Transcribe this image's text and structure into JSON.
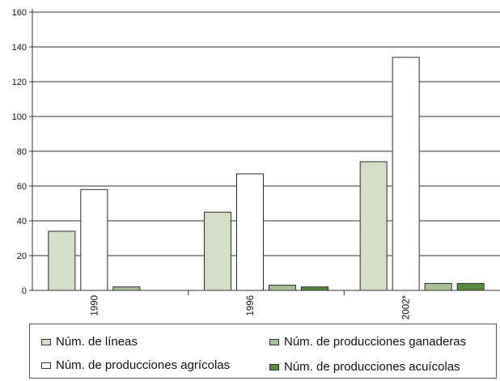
{
  "chart_data": {
    "type": "bar",
    "categories": [
      "1990",
      "1996",
      "2002*"
    ],
    "series": [
      {
        "name": "Núm. de líneas",
        "color": "#d3dfc9",
        "values": [
          34,
          45,
          74
        ]
      },
      {
        "name": "Núm. de producciones agrícolas",
        "color": "#ffffff",
        "values": [
          58,
          67,
          134
        ]
      },
      {
        "name": "Núm. de producciones ganaderas",
        "color": "#a9bf96",
        "values": [
          2,
          3,
          4
        ]
      },
      {
        "name": "Núm. de producciones acuícolas",
        "color": "#5a8a3e",
        "values": [
          0,
          2,
          4
        ]
      }
    ],
    "ylim": [
      0,
      160
    ],
    "yticks": [
      0,
      20,
      40,
      60,
      80,
      100,
      120,
      140,
      160
    ],
    "grid": true,
    "legend_position": "bottom"
  }
}
